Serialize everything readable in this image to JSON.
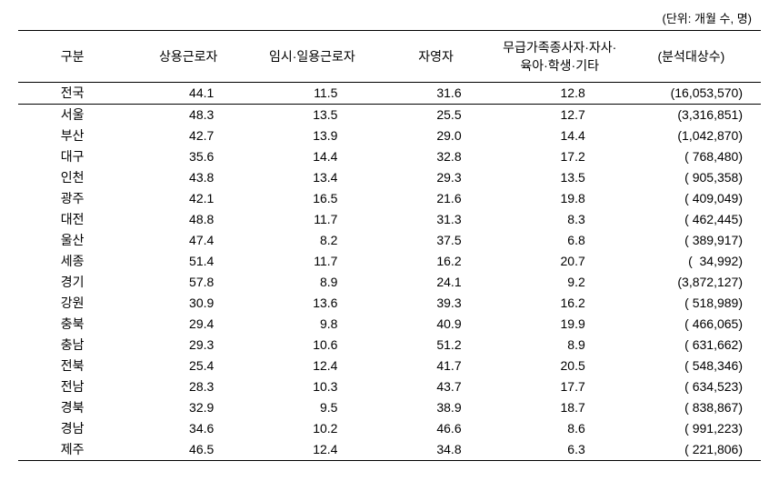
{
  "unit_label": "(단위: 개월 수, 명)",
  "columns": [
    "구분",
    "상용근로자",
    "임시·일용근로자",
    "자영자",
    "무급가족종사자·자사·육아·학생·기타",
    "(분석대상수)"
  ],
  "rows": [
    {
      "region": "전국",
      "c1": "44.1",
      "c2": "11.5",
      "c3": "31.6",
      "c4": "12.8",
      "count": "(16,053,570)",
      "national": true
    },
    {
      "region": "서울",
      "c1": "48.3",
      "c2": "13.5",
      "c3": "25.5",
      "c4": "12.7",
      "count": "(3,316,851)"
    },
    {
      "region": "부산",
      "c1": "42.7",
      "c2": "13.9",
      "c3": "29.0",
      "c4": "14.4",
      "count": "(1,042,870)"
    },
    {
      "region": "대구",
      "c1": "35.6",
      "c2": "14.4",
      "c3": "32.8",
      "c4": "17.2",
      "count": "( 768,480)"
    },
    {
      "region": "인천",
      "c1": "43.8",
      "c2": "13.4",
      "c3": "29.3",
      "c4": "13.5",
      "count": "( 905,358)"
    },
    {
      "region": "광주",
      "c1": "42.1",
      "c2": "16.5",
      "c3": "21.6",
      "c4": "19.8",
      "count": "( 409,049)"
    },
    {
      "region": "대전",
      "c1": "48.8",
      "c2": "11.7",
      "c3": "31.3",
      "c4": "8.3",
      "count": "( 462,445)"
    },
    {
      "region": "울산",
      "c1": "47.4",
      "c2": "8.2",
      "c3": "37.5",
      "c4": "6.8",
      "count": "( 389,917)"
    },
    {
      "region": "세종",
      "c1": "51.4",
      "c2": "11.7",
      "c3": "16.2",
      "c4": "20.7",
      "count": "(  34,992)"
    },
    {
      "region": "경기",
      "c1": "57.8",
      "c2": "8.9",
      "c3": "24.1",
      "c4": "9.2",
      "count": "(3,872,127)"
    },
    {
      "region": "강원",
      "c1": "30.9",
      "c2": "13.6",
      "c3": "39.3",
      "c4": "16.2",
      "count": "( 518,989)"
    },
    {
      "region": "충북",
      "c1": "29.4",
      "c2": "9.8",
      "c3": "40.9",
      "c4": "19.9",
      "count": "( 466,065)"
    },
    {
      "region": "충남",
      "c1": "29.3",
      "c2": "10.6",
      "c3": "51.2",
      "c4": "8.9",
      "count": "( 631,662)"
    },
    {
      "region": "전북",
      "c1": "25.4",
      "c2": "12.4",
      "c3": "41.7",
      "c4": "20.5",
      "count": "( 548,346)"
    },
    {
      "region": "전남",
      "c1": "28.3",
      "c2": "10.3",
      "c3": "43.7",
      "c4": "17.7",
      "count": "( 634,523)"
    },
    {
      "region": "경북",
      "c1": "32.9",
      "c2": "9.5",
      "c3": "38.9",
      "c4": "18.7",
      "count": "( 838,867)"
    },
    {
      "region": "경남",
      "c1": "34.6",
      "c2": "10.2",
      "c3": "46.6",
      "c4": "8.6",
      "count": "( 991,223)"
    },
    {
      "region": "제주",
      "c1": "46.5",
      "c2": "12.4",
      "c3": "34.8",
      "c4": "6.3",
      "count": "( 221,806)"
    }
  ]
}
